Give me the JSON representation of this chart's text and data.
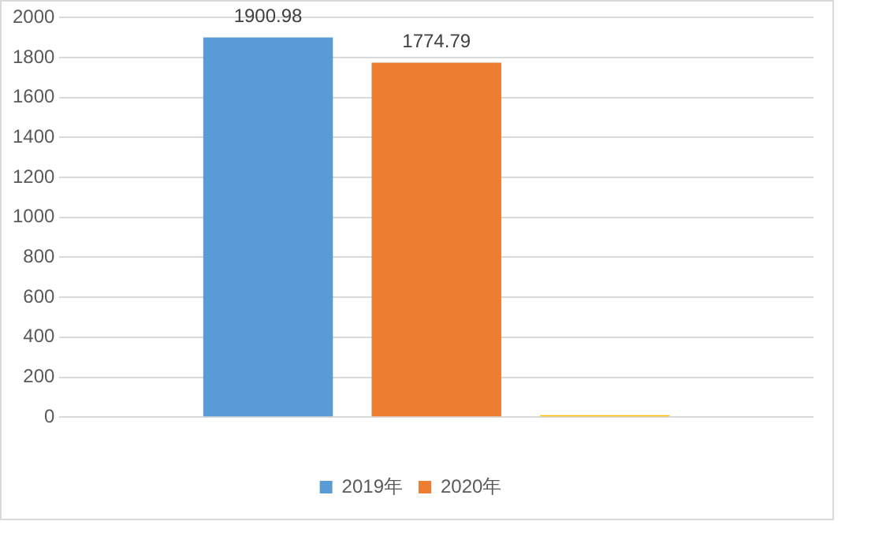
{
  "chart_data": {
    "type": "bar",
    "categories": [
      null
    ],
    "series": [
      {
        "name": "2019年",
        "color": "#5b9bd5",
        "values": [
          1900.98
        ],
        "value_labels": [
          "1900.98"
        ]
      },
      {
        "name": "2020年",
        "color": "#ed7d31",
        "values": [
          1774.79
        ],
        "value_labels": [
          "1774.79"
        ]
      },
      {
        "color": "#ffc000",
        "values": [
          10
        ],
        "value_labels": [
          null
        ]
      }
    ],
    "ylim": [
      0,
      2000
    ],
    "yticks": [
      0,
      200,
      400,
      600,
      800,
      1000,
      1200,
      1400,
      1600,
      1800,
      2000
    ],
    "grid": "y",
    "legend": "bottom"
  }
}
